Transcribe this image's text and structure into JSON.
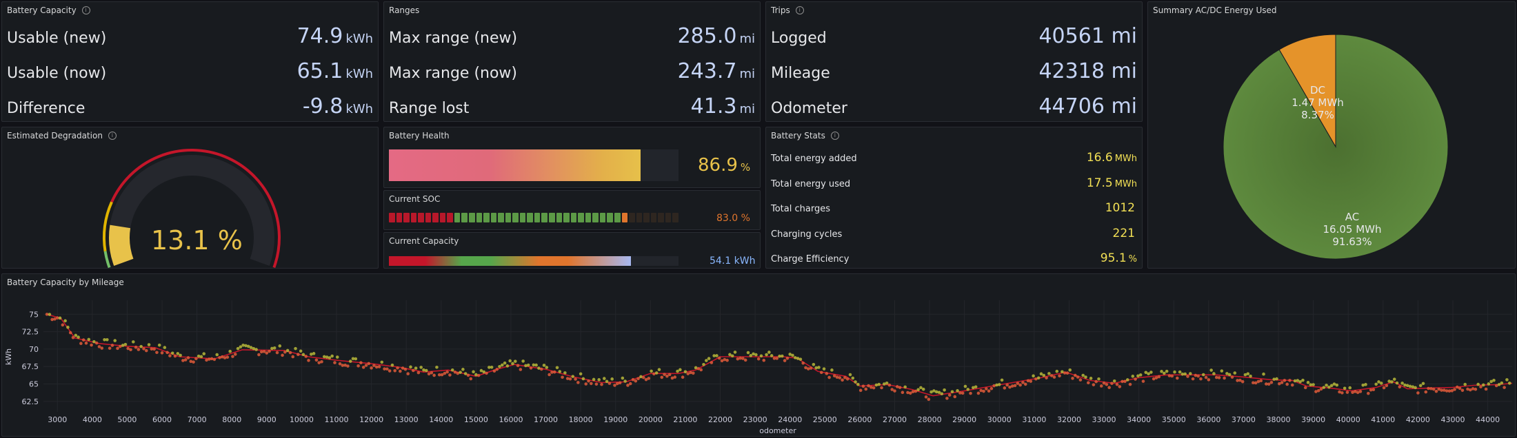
{
  "battery_capacity": {
    "title": "Battery Capacity",
    "rows": [
      {
        "label": "Usable (new)",
        "value": "74.9",
        "unit": "kWh"
      },
      {
        "label": "Usable (now)",
        "value": "65.1",
        "unit": "kWh"
      },
      {
        "label": "Difference",
        "value": "-9.8",
        "unit": "kWh"
      }
    ]
  },
  "ranges": {
    "title": "Ranges",
    "rows": [
      {
        "label": "Max range (new)",
        "value": "285.0",
        "unit": "mi"
      },
      {
        "label": "Max range (now)",
        "value": "243.7",
        "unit": "mi"
      },
      {
        "label": "Range lost",
        "value": "41.3",
        "unit": "mi"
      }
    ]
  },
  "trips": {
    "title": "Trips",
    "rows": [
      {
        "label": "Logged",
        "value": "40561 mi"
      },
      {
        "label": "Mileage",
        "value": "42318 mi"
      },
      {
        "label": "Odometer",
        "value": "44706 mi"
      }
    ]
  },
  "energy_pie": {
    "title": "Summary AC/DC Energy Used",
    "dc": {
      "name": "DC",
      "energy": "1.47 MWh",
      "percent": "8.37%",
      "fraction": 0.0837
    },
    "ac": {
      "name": "AC",
      "energy": "16.05 MWh",
      "percent": "91.63%",
      "fraction": 0.9163
    },
    "colors": {
      "ac": "#56803a",
      "dc": "#e5932a"
    }
  },
  "degradation": {
    "title": "Estimated Degradation",
    "value": "13.1 %",
    "fraction": 0.131
  },
  "battery_health": {
    "title": "Battery Health",
    "value": "86.9",
    "unit": "%",
    "fraction": 0.869
  },
  "current_soc": {
    "title": "Current SOC",
    "value": "83.0 %",
    "fraction": 0.83
  },
  "current_capacity": {
    "title": "Current Capacity",
    "value": "54.1 kWh",
    "fraction": 0.835
  },
  "battery_stats": {
    "title": "Battery Stats",
    "rows": [
      {
        "label": "Total energy added",
        "value": "16.6",
        "unit": "MWh"
      },
      {
        "label": "Total energy used",
        "value": "17.5",
        "unit": "MWh"
      },
      {
        "label": "Total charges",
        "value": "1012",
        "unit": ""
      },
      {
        "label": "Charging cycles",
        "value": "221",
        "unit": ""
      },
      {
        "label": "Charge Efficiency",
        "value": "95.1",
        "unit": "%"
      }
    ]
  },
  "chart_data": {
    "type": "scatter",
    "title": "Battery Capacity by Mileage",
    "xlabel": "odometer",
    "ylabel": "kWh",
    "xlim": [
      2600,
      44700
    ],
    "ylim": [
      61,
      77
    ],
    "xticks": [
      3000,
      4000,
      5000,
      6000,
      7000,
      8000,
      9000,
      10000,
      11000,
      12000,
      13000,
      14000,
      15000,
      16000,
      17000,
      18000,
      19000,
      20000,
      21000,
      22000,
      23000,
      24000,
      25000,
      26000,
      27000,
      28000,
      29000,
      30000,
      31000,
      32000,
      33000,
      34000,
      35000,
      36000,
      37000,
      38000,
      39000,
      40000,
      41000,
      42000,
      43000,
      44000
    ],
    "yticks": [
      62.5,
      65,
      67.5,
      70,
      72.5,
      75
    ],
    "trend_line": [
      [
        2700,
        75
      ],
      [
        3100,
        74.4
      ],
      [
        3500,
        71.6
      ],
      [
        4200,
        70.8
      ],
      [
        5000,
        70.4
      ],
      [
        5800,
        70.2
      ],
      [
        6500,
        68.9
      ],
      [
        7500,
        68.6
      ],
      [
        8300,
        69.9
      ],
      [
        9500,
        69.8
      ],
      [
        10200,
        68.9
      ],
      [
        11000,
        68.4
      ],
      [
        12000,
        67.9
      ],
      [
        12800,
        67.4
      ],
      [
        13500,
        66.7
      ],
      [
        14200,
        67.0
      ],
      [
        15000,
        66.1
      ],
      [
        15600,
        67.1
      ],
      [
        16100,
        67.8
      ],
      [
        17000,
        67.1
      ],
      [
        17800,
        66.0
      ],
      [
        18600,
        65.2
      ],
      [
        19300,
        65.3
      ],
      [
        20000,
        66.5
      ],
      [
        20800,
        66.5
      ],
      [
        21300,
        67.0
      ],
      [
        22000,
        68.9
      ],
      [
        22800,
        68.9
      ],
      [
        23800,
        68.9
      ],
      [
        24200,
        68.7
      ],
      [
        24800,
        66.8
      ],
      [
        25600,
        66.1
      ],
      [
        26000,
        64.7
      ],
      [
        26800,
        64.9
      ],
      [
        27500,
        64.2
      ],
      [
        28100,
        63.3
      ],
      [
        29000,
        64.0
      ],
      [
        29800,
        64.7
      ],
      [
        30500,
        65.3
      ],
      [
        31200,
        65.9
      ],
      [
        31900,
        66.7
      ],
      [
        32600,
        65.5
      ],
      [
        33300,
        65.1
      ],
      [
        34000,
        65.9
      ],
      [
        34800,
        66.3
      ],
      [
        35500,
        66.3
      ],
      [
        36200,
        66.3
      ],
      [
        37000,
        66.0
      ],
      [
        37800,
        65.6
      ],
      [
        38400,
        65.5
      ],
      [
        38800,
        64.7
      ],
      [
        39500,
        64.4
      ],
      [
        40100,
        64.0
      ],
      [
        40800,
        64.5
      ],
      [
        41300,
        65.3
      ],
      [
        41700,
        64.3
      ],
      [
        42300,
        64.4
      ],
      [
        43000,
        64.5
      ],
      [
        43600,
        64.8
      ],
      [
        44300,
        64.9
      ],
      [
        44700,
        65.1
      ]
    ],
    "colors": {
      "line": "#c4162a",
      "point_high": "#b7b73a",
      "point_low": "#e05a3a"
    }
  }
}
